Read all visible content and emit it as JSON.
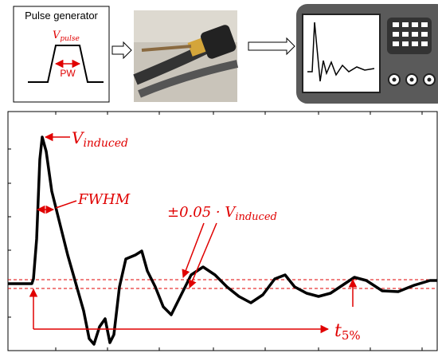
{
  "pulse_generator": {
    "title": "Pulse generator",
    "amplitude": {
      "base": "V",
      "sub": "pulse"
    },
    "width": "PW"
  },
  "waveform": {
    "peak": {
      "base": "V",
      "sub": "induced"
    },
    "fwhm": "FWHM",
    "band": {
      "base": "±0.05 · V",
      "sub": "induced"
    },
    "settle": {
      "base": "t",
      "sub": "5%"
    }
  }
}
